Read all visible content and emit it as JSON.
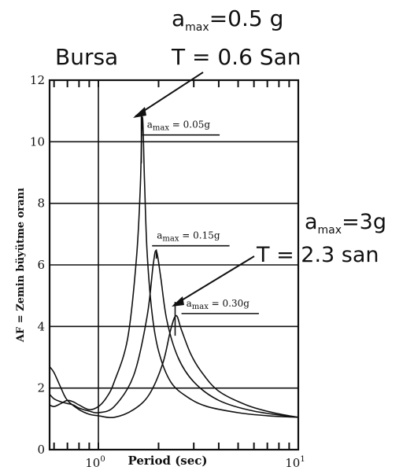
{
  "chart_data": {
    "type": "line",
    "ylabel": "AF = Zemin büyütme oranı",
    "xlabel": "Period (sec)",
    "x_scale": "log",
    "xlim": [
      0.57,
      10
    ],
    "ylim": [
      0,
      12
    ],
    "y_ticks": [
      "0",
      "2",
      "4",
      "6",
      "8",
      "10",
      "12"
    ],
    "x_tick_labels": [
      {
        "value": 1,
        "base": "10",
        "exp": "0"
      },
      {
        "value": 10,
        "base": "10",
        "exp": "1"
      }
    ],
    "grid": "horizontal lines at every y tick; vertical line at 10^0",
    "series": [
      {
        "name": "",
        "x": [
          0.57,
          0.6,
          0.65,
          0.7,
          0.75,
          0.8,
          0.9,
          1.0,
          1.1,
          1.2,
          1.4,
          1.55,
          1.62,
          1.66,
          1.7,
          1.75,
          1.85,
          2.0,
          2.3,
          2.8,
          3.5,
          5.0,
          7.0,
          10.0
        ],
        "y": [
          1.45,
          1.4,
          1.5,
          1.6,
          1.55,
          1.45,
          1.3,
          1.4,
          1.7,
          2.2,
          3.6,
          6.2,
          8.5,
          10.8,
          8.8,
          6.5,
          4.5,
          3.2,
          2.2,
          1.7,
          1.4,
          1.2,
          1.1,
          1.05
        ]
      },
      {
        "name": "",
        "x": [
          0.57,
          0.6,
          0.65,
          0.7,
          0.75,
          0.8,
          0.9,
          1.0,
          1.2,
          1.5,
          1.75,
          1.88,
          1.95,
          2.05,
          2.2,
          2.5,
          3.0,
          4.0,
          6.0,
          10.0
        ],
        "y": [
          1.8,
          1.65,
          1.55,
          1.5,
          1.45,
          1.35,
          1.25,
          1.2,
          1.4,
          2.4,
          4.3,
          6.0,
          6.45,
          5.6,
          4.2,
          3.0,
          2.2,
          1.6,
          1.25,
          1.05
        ]
      },
      {
        "name": "",
        "x": [
          0.57,
          0.6,
          0.65,
          0.7,
          0.8,
          0.9,
          1.0,
          1.2,
          1.5,
          1.8,
          2.1,
          2.3,
          2.45,
          2.6,
          2.9,
          3.3,
          4.0,
          5.5,
          7.5,
          10.0
        ],
        "y": [
          2.7,
          2.5,
          2.0,
          1.6,
          1.3,
          1.15,
          1.1,
          1.05,
          1.3,
          1.8,
          2.8,
          3.9,
          4.35,
          3.9,
          3.1,
          2.5,
          1.9,
          1.45,
          1.2,
          1.05
        ]
      }
    ],
    "peak_ticks": [
      {
        "x": 1.64,
        "y_top": 11.0,
        "y_bottom": 9.3
      },
      {
        "x": 1.95,
        "y_top": 6.5,
        "y_bottom": 6.2
      },
      {
        "x": 2.42,
        "y_top": 4.8,
        "y_bottom": 3.7
      }
    ],
    "inline_labels": [
      {
        "base": "a",
        "sub": "max",
        "rest": " = 0.05g",
        "x": 1.75,
        "y": 10.45
      },
      {
        "base": "a",
        "sub": "max",
        "rest": " = 0.15g",
        "x": 1.96,
        "y": 6.85
      },
      {
        "base": "a",
        "sub": "max",
        "rest": " = 0.30g",
        "x": 2.75,
        "y": 4.65
      }
    ],
    "annotations": [
      {
        "line1_base": "a",
        "line1_sub": "max",
        "line1_rest": "=0.5 g",
        "line2": "T = 0.6 San",
        "site": "Bursa"
      },
      {
        "line1_base": "a",
        "line1_sub": "max",
        "line1_rest": "=3g",
        "line2": "T = 2.3 san"
      }
    ]
  },
  "colors": {
    "ink": "#111111",
    "background": "#ffffff"
  }
}
